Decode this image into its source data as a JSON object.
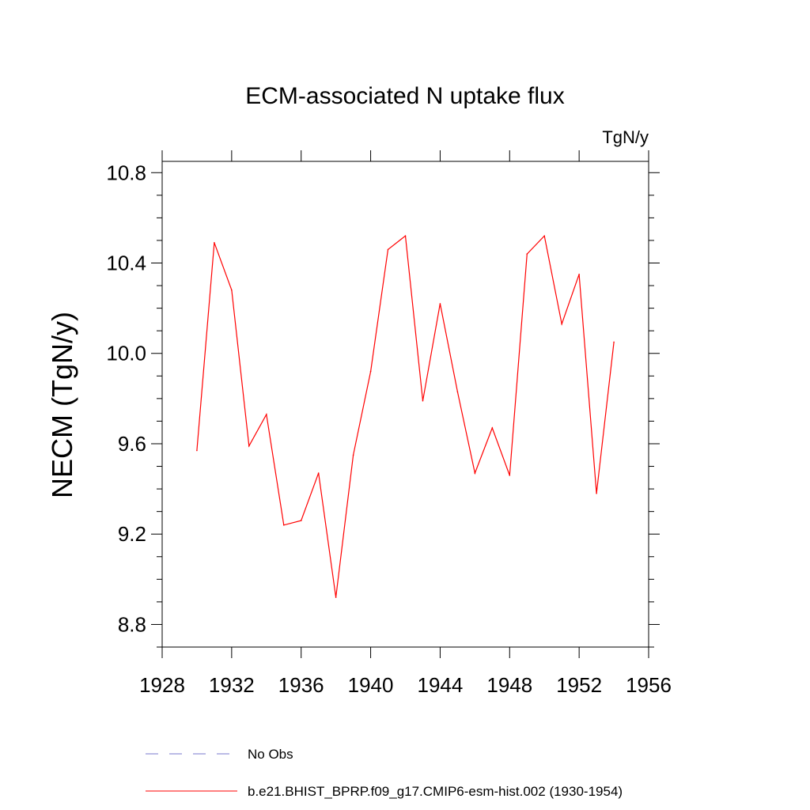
{
  "chart_data": {
    "type": "line",
    "title": "ECM-associated N uptake flux",
    "units": "TgN/y",
    "ylabel": "NECM  (TgN/y)",
    "xlabel": "",
    "xlim": [
      1928,
      1956
    ],
    "ylim": [
      8.7,
      10.85
    ],
    "xticks": [
      1928,
      1932,
      1936,
      1940,
      1944,
      1948,
      1952,
      1956
    ],
    "yticks": [
      8.8,
      9.2,
      9.6,
      10.0,
      10.4,
      10.8
    ],
    "ytick_labels": [
      "8.8",
      "9.2",
      "9.6",
      "10.0",
      "10.4",
      "10.8"
    ],
    "grid": false,
    "legend_position": "bottom",
    "series": [
      {
        "name": "b.e21.BHIST_BPRP.f09_g17.CMIP6-esm-hist.002 (1930-1954)",
        "color": "#ff0000",
        "style": "solid",
        "x": [
          1930,
          1931,
          1932,
          1933,
          1934,
          1935,
          1936,
          1937,
          1938,
          1939,
          1940,
          1941,
          1942,
          1943,
          1944,
          1945,
          1946,
          1947,
          1948,
          1949,
          1950,
          1951,
          1952,
          1953,
          1954
        ],
        "values": [
          9.57,
          10.49,
          10.28,
          9.59,
          9.73,
          9.24,
          9.26,
          9.47,
          8.92,
          9.55,
          9.92,
          10.46,
          10.52,
          9.79,
          10.22,
          9.83,
          9.47,
          9.67,
          9.46,
          10.44,
          10.52,
          10.13,
          10.35,
          9.38,
          10.05
        ]
      }
    ],
    "legend": [
      {
        "label": "No Obs",
        "color": "#7777cc",
        "style": "dashed"
      },
      {
        "label": "b.e21.BHIST_BPRP.f09_g17.CMIP6-esm-hist.002 (1930-1954)",
        "color": "#ff0000",
        "style": "solid"
      }
    ]
  }
}
